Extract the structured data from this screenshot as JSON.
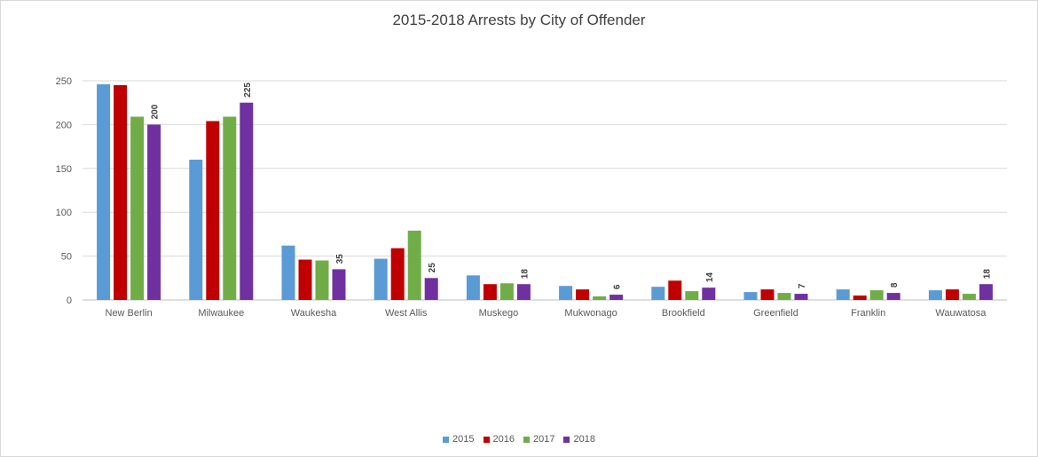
{
  "chart_data": {
    "type": "bar",
    "title": "2015-2018 Arrests by City of Offender",
    "xlabel": "",
    "ylabel": "",
    "ylim": [
      0,
      250
    ],
    "yticks": [
      0,
      50,
      100,
      150,
      200,
      250
    ],
    "grid": true,
    "legend_position": "bottom",
    "categories": [
      "New Berlin",
      "Milwaukee",
      "Waukesha",
      "West Allis",
      "Muskego",
      "Mukwonago",
      "Brookfield",
      "Greenfield",
      "Franklin",
      "Wauwatosa"
    ],
    "series": [
      {
        "name": "2015",
        "color": "#5b9bd5",
        "values": [
          246,
          160,
          62,
          47,
          28,
          16,
          15,
          9,
          12,
          11
        ],
        "show_labels": false
      },
      {
        "name": "2016",
        "color": "#c00000",
        "values": [
          245,
          204,
          46,
          59,
          18,
          12,
          22,
          12,
          5,
          12
        ],
        "show_labels": false
      },
      {
        "name": "2017",
        "color": "#70ad47",
        "values": [
          209,
          209,
          45,
          79,
          19,
          4,
          10,
          8,
          11,
          7
        ],
        "show_labels": false
      },
      {
        "name": "2018",
        "color": "#7030a0",
        "values": [
          200,
          225,
          35,
          25,
          18,
          6,
          14,
          7,
          8,
          18
        ],
        "show_labels": true
      }
    ]
  }
}
